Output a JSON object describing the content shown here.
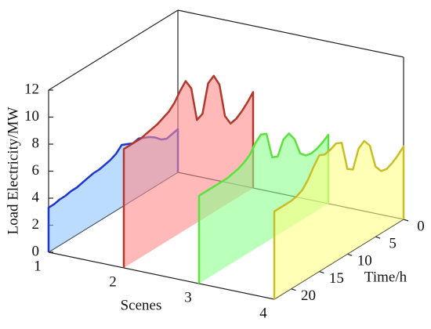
{
  "chart_data": {
    "type": "panels3d",
    "ylabel": "Load Electricity/MW",
    "xlabel": "Time/h",
    "zlabel": "Scenes",
    "categories": [
      "1",
      "2",
      "3",
      "4"
    ],
    "x": [
      0,
      1,
      2,
      3,
      4,
      5,
      6,
      7,
      8,
      9,
      10,
      11,
      12,
      13,
      14,
      15,
      16,
      17,
      18,
      19,
      20,
      21,
      22,
      23
    ],
    "xlim": [
      0,
      23
    ],
    "xticks": [
      0,
      5,
      10,
      15,
      20
    ],
    "ylim": [
      0,
      12
    ],
    "yticks": [
      0,
      2,
      4,
      6,
      8,
      10,
      12
    ],
    "series": [
      {
        "color": "#1f35d0",
        "fill": "#8ec5ff",
        "values": [
          3.2,
          3.1,
          3.0,
          3.2,
          3.6,
          3.9,
          4.1,
          4.3,
          4.2,
          4.4,
          4.6,
          4.2,
          4.0,
          3.9,
          3.8,
          3.8,
          3.7,
          3.6,
          3.5,
          3.5,
          3.4,
          3.4,
          3.3,
          3.3
        ]
      },
      {
        "color": "#b0382c",
        "fill": "#ff8a8a",
        "values": [
          7.1,
          6.6,
          6.2,
          5.9,
          5.8,
          6.6,
          9.2,
          10.1,
          9.8,
          7.8,
          7.6,
          10.2,
          11.0,
          10.5,
          9.9,
          9.5,
          9.3,
          9.1,
          9.0,
          8.9,
          8.8,
          8.8,
          8.8,
          8.8
        ]
      },
      {
        "color": "#5ce23c",
        "fill": "#8cff8c",
        "values": [
          5.1,
          4.8,
          4.6,
          4.5,
          4.6,
          5.0,
          6.3,
          7.0,
          6.8,
          5.8,
          6.0,
          8.0,
          8.2,
          7.8,
          7.2,
          6.9,
          6.7,
          6.6,
          6.5,
          6.5,
          6.5,
          6.5,
          6.5,
          6.5
        ]
      },
      {
        "color": "#c8be28",
        "fill": "#ffff84",
        "values": [
          5.4,
          5.0,
          4.7,
          4.5,
          4.6,
          5.2,
          7.0,
          7.6,
          7.3,
          6.0,
          6.3,
          8.5,
          8.7,
          8.5,
          8.4,
          8.6,
          8.0,
          7.3,
          6.8,
          6.6,
          6.5,
          6.5,
          6.5,
          6.5
        ]
      }
    ]
  }
}
